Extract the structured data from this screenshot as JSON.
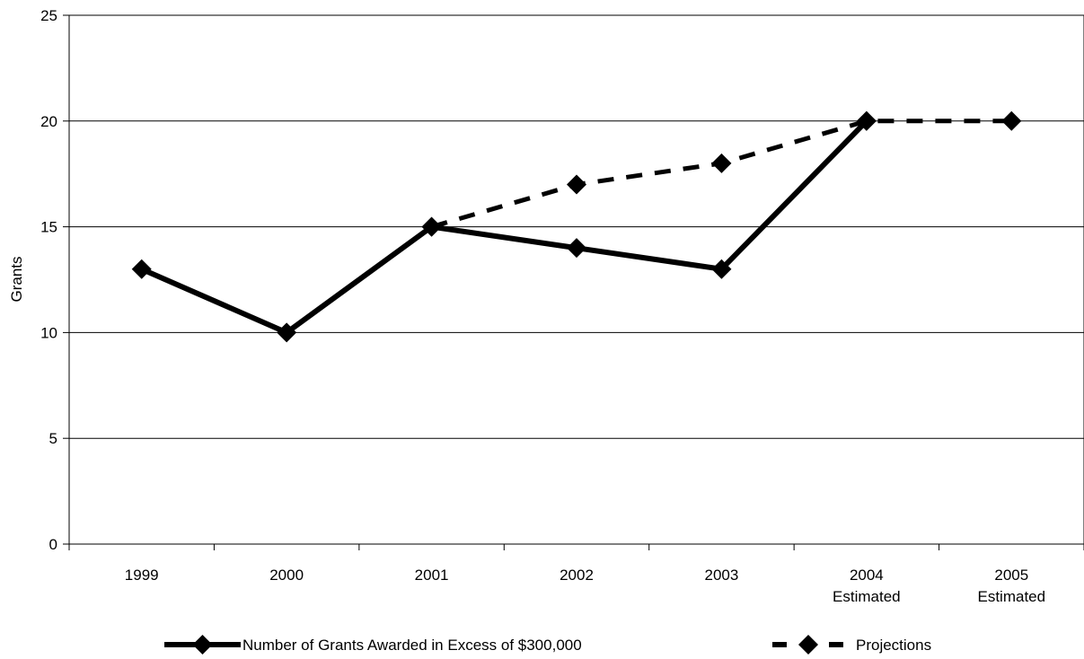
{
  "chart_data": {
    "type": "line",
    "categories": [
      "1999",
      "2000",
      "2001",
      "2002",
      "2003",
      "2004 Estimated",
      "2005 Estimated"
    ],
    "category_lines": [
      [
        "1999"
      ],
      [
        "2000"
      ],
      [
        "2001"
      ],
      [
        "2002"
      ],
      [
        "2003"
      ],
      [
        "2004",
        "Estimated"
      ],
      [
        "2005",
        "Estimated"
      ]
    ],
    "ylabel": "Grants",
    "ylim": [
      0,
      25
    ],
    "yticks": [
      0,
      5,
      10,
      15,
      20,
      25
    ],
    "grid": true,
    "legend_position": "bottom",
    "series": [
      {
        "name": "Number of Grants Awarded in Excess of $300,000",
        "style": "solid",
        "color": "#000000",
        "values": [
          13,
          10,
          15,
          14,
          13,
          20,
          null
        ]
      },
      {
        "name": "Projections",
        "style": "dashed",
        "color": "#000000",
        "values": [
          null,
          null,
          15,
          17,
          18,
          20,
          20
        ]
      }
    ]
  }
}
